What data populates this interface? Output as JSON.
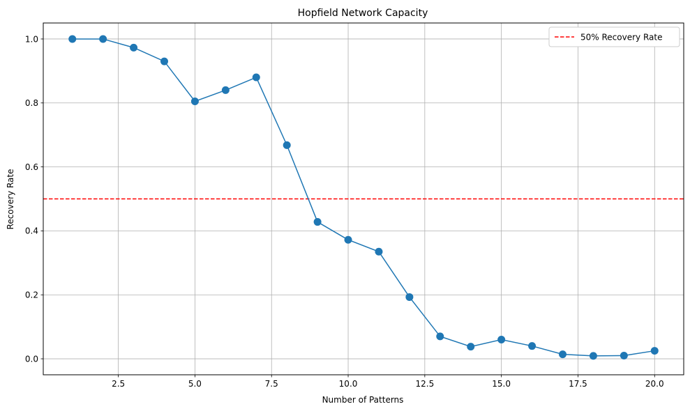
{
  "chart_data": {
    "type": "line",
    "title": "Hopfield Network Capacity",
    "xlabel": "Number of Patterns",
    "ylabel": "Recovery Rate",
    "xlim": [
      0.05,
      20.95
    ],
    "ylim": [
      -0.05,
      1.05
    ],
    "xticks": [
      2.5,
      5.0,
      7.5,
      10.0,
      12.5,
      15.0,
      17.5,
      20.0
    ],
    "xtick_labels": [
      "2.5",
      "5.0",
      "7.5",
      "10.0",
      "12.5",
      "15.0",
      "17.5",
      "20.0"
    ],
    "yticks": [
      0.0,
      0.2,
      0.4,
      0.6,
      0.8,
      1.0
    ],
    "ytick_labels": [
      "0.0",
      "0.2",
      "0.4",
      "0.6",
      "0.8",
      "1.0"
    ],
    "grid": true,
    "legend_position": "top-right",
    "series": [
      {
        "color": "#1f77b4",
        "marker": "circle",
        "x": [
          1,
          2,
          3,
          4,
          5,
          6,
          7,
          8,
          9,
          10,
          11,
          12,
          13,
          14,
          15,
          16,
          17,
          18,
          19,
          20
        ],
        "y": [
          1.0,
          1.0,
          0.973,
          0.93,
          0.805,
          0.84,
          0.88,
          0.668,
          0.428,
          0.372,
          0.335,
          0.193,
          0.07,
          0.038,
          0.06,
          0.04,
          0.014,
          0.009,
          0.01,
          0.025
        ]
      }
    ],
    "reference_lines": [
      {
        "name": "50% Recovery Rate",
        "y": 0.5,
        "color": "#ff0000",
        "style": "dashed"
      }
    ]
  }
}
